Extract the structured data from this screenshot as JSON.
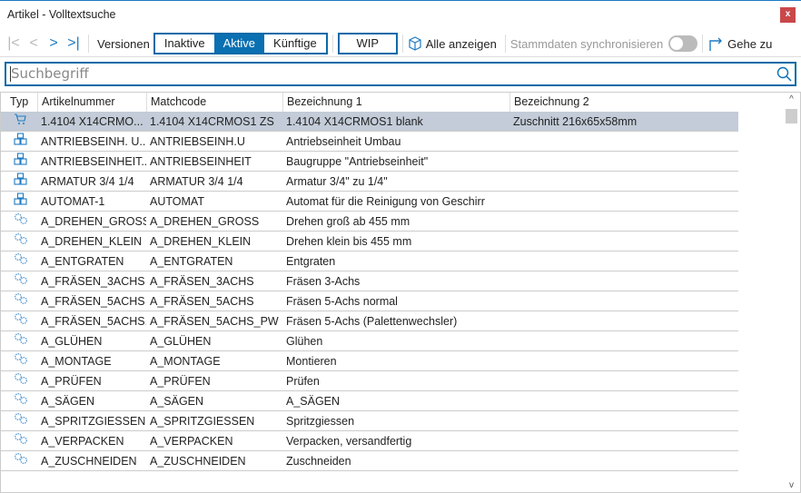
{
  "window": {
    "title": "Artikel - Volltextsuche",
    "close": "x"
  },
  "toolbar": {
    "versions_label": "Versionen",
    "inactive": "Inaktive",
    "active": "Aktive",
    "future": "Künftige",
    "wip": "WIP",
    "show_all": "Alle anzeigen",
    "sync": "Stammdaten synchronisieren",
    "sync_on": false,
    "goto": "Gehe zu"
  },
  "search": {
    "placeholder": "Suchbegriff",
    "value": ""
  },
  "columns": [
    "Typ",
    "Artikelnummer",
    "Matchcode",
    "Bezeichnung 1",
    "Bezeichnung 2"
  ],
  "rows": [
    {
      "type": "cart-icon",
      "nr": "1.4104 X14CRMO...",
      "mc": "1.4104 X14CRMOS1 ZS",
      "b1": "1.4104 X14CRMOS1 blank",
      "b2": "Zuschnitt 216x65x58mm"
    },
    {
      "type": "assembly-icon",
      "nr": "ANTRIEBSEINH. U...",
      "mc": "ANTRIEBSEINH.U",
      "b1": "Antriebseinheit Umbau",
      "b2": ""
    },
    {
      "type": "assembly-icon",
      "nr": "ANTRIEBSEINHEIT...",
      "mc": "ANTRIEBSEINHEIT",
      "b1": "Baugruppe \"Antriebseinheit\"",
      "b2": ""
    },
    {
      "type": "assembly-icon",
      "nr": "ARMATUR 3/4 1/4",
      "mc": "ARMATUR 3/4 1/4",
      "b1": "Armatur 3/4\" zu 1/4\"",
      "b2": ""
    },
    {
      "type": "assembly-icon",
      "nr": "AUTOMAT-1",
      "mc": "AUTOMAT",
      "b1": "Automat für die Reinigung von Geschirr",
      "b2": ""
    },
    {
      "type": "gears-icon",
      "nr": "A_DREHEN_GROSS",
      "mc": "A_DREHEN_GROSS",
      "b1": "Drehen groß ab 455 mm",
      "b2": ""
    },
    {
      "type": "gears-icon",
      "nr": "A_DREHEN_KLEIN",
      "mc": "A_DREHEN_KLEIN",
      "b1": "Drehen klein bis 455 mm",
      "b2": ""
    },
    {
      "type": "gears-icon",
      "nr": "A_ENTGRATEN",
      "mc": "A_ENTGRATEN",
      "b1": "Entgraten",
      "b2": ""
    },
    {
      "type": "gears-icon",
      "nr": "A_FRÄSEN_3ACHS",
      "mc": "A_FRÄSEN_3ACHS",
      "b1": "Fräsen 3-Achs",
      "b2": ""
    },
    {
      "type": "gears-icon",
      "nr": "A_FRÄSEN_5ACHS",
      "mc": "A_FRÄSEN_5ACHS",
      "b1": "Fräsen 5-Achs normal",
      "b2": ""
    },
    {
      "type": "gears-icon",
      "nr": "A_FRÄSEN_5ACHS...",
      "mc": "A_FRÄSEN_5ACHS_PW",
      "b1": "Fräsen 5-Achs (Palettenwechsler)",
      "b2": ""
    },
    {
      "type": "gears-icon",
      "nr": "A_GLÜHEN",
      "mc": "A_GLÜHEN",
      "b1": "Glühen",
      "b2": ""
    },
    {
      "type": "gears-icon",
      "nr": "A_MONTAGE",
      "mc": "A_MONTAGE",
      "b1": "Montieren",
      "b2": ""
    },
    {
      "type": "gears-icon",
      "nr": "A_PRÜFEN",
      "mc": "A_PRÜFEN",
      "b1": "Prüfen",
      "b2": ""
    },
    {
      "type": "gears-icon",
      "nr": "A_SÄGEN",
      "mc": "A_SÄGEN",
      "b1": "A_SÄGEN",
      "b2": ""
    },
    {
      "type": "gears-icon",
      "nr": "A_SPRITZGIESSEN",
      "mc": "A_SPRITZGIESSEN",
      "b1": "Spritzgiessen",
      "b2": ""
    },
    {
      "type": "gears-icon",
      "nr": "A_VERPACKEN",
      "mc": "A_VERPACKEN",
      "b1": "Verpacken, versandfertig",
      "b2": ""
    },
    {
      "type": "gears-icon",
      "nr": "A_ZUSCHNEIDEN",
      "mc": "A_ZUSCHNEIDEN",
      "b1": "Zuschneiden",
      "b2": ""
    }
  ],
  "colors": {
    "accent": "#0a70b2",
    "selected_row": "#c3ccd8",
    "close": "#c9484a"
  }
}
